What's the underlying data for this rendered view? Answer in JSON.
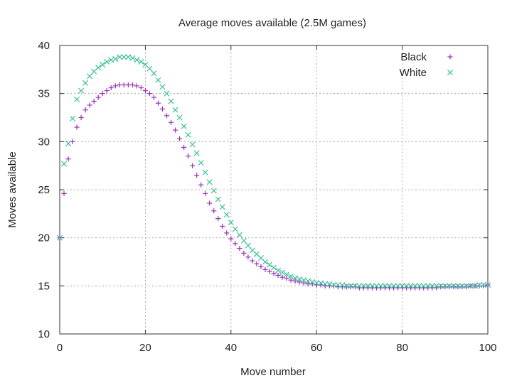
{
  "chart_data": {
    "type": "scatter",
    "title": "Average moves available (2.5M games)",
    "xlabel": "Move number",
    "ylabel": "Moves available",
    "xlim": [
      0,
      100
    ],
    "ylim": [
      10,
      40
    ],
    "xticks": [
      0,
      20,
      40,
      60,
      80,
      100
    ],
    "yticks": [
      10,
      15,
      20,
      25,
      30,
      35,
      40
    ],
    "grid": true,
    "legend_position": "top-right",
    "series": [
      {
        "name": "Black",
        "marker": "plus",
        "color": "#9b30b8",
        "x": [
          0,
          1,
          2,
          3,
          4,
          5,
          6,
          7,
          8,
          9,
          10,
          11,
          12,
          13,
          14,
          15,
          16,
          17,
          18,
          19,
          20,
          21,
          22,
          23,
          24,
          25,
          26,
          27,
          28,
          29,
          30,
          31,
          32,
          33,
          34,
          35,
          36,
          37,
          38,
          39,
          40,
          41,
          42,
          43,
          44,
          45,
          46,
          47,
          48,
          49,
          50,
          51,
          52,
          53,
          54,
          55,
          56,
          57,
          58,
          59,
          60,
          61,
          62,
          63,
          64,
          65,
          66,
          67,
          68,
          69,
          70,
          71,
          72,
          73,
          74,
          75,
          76,
          77,
          78,
          79,
          80,
          81,
          82,
          83,
          84,
          85,
          86,
          87,
          88,
          89,
          90,
          91,
          92,
          93,
          94,
          95,
          96,
          97,
          98,
          99,
          100
        ],
        "y": [
          20.0,
          24.6,
          28.2,
          30.0,
          31.5,
          32.5,
          33.3,
          33.8,
          34.2,
          34.6,
          35.0,
          35.3,
          35.6,
          35.8,
          35.9,
          35.9,
          35.9,
          35.9,
          35.8,
          35.6,
          35.3,
          35.0,
          34.6,
          34.0,
          33.4,
          32.7,
          32.0,
          31.2,
          30.3,
          29.4,
          28.5,
          27.5,
          26.5,
          25.5,
          24.6,
          23.6,
          22.8,
          22.0,
          21.2,
          20.5,
          19.9,
          19.4,
          18.9,
          18.4,
          18.0,
          17.6,
          17.3,
          17.0,
          16.7,
          16.5,
          16.3,
          16.1,
          15.9,
          15.8,
          15.6,
          15.5,
          15.4,
          15.3,
          15.2,
          15.2,
          15.1,
          15.1,
          15.0,
          15.0,
          15.0,
          14.9,
          14.9,
          14.9,
          14.9,
          14.9,
          14.8,
          14.8,
          14.8,
          14.8,
          14.8,
          14.8,
          14.8,
          14.8,
          14.8,
          14.8,
          14.8,
          14.8,
          14.8,
          14.8,
          14.8,
          14.8,
          14.8,
          14.8,
          14.8,
          14.9,
          14.9,
          14.9,
          14.9,
          14.9,
          14.9,
          14.9,
          15.0,
          15.0,
          15.0,
          15.0,
          15.1
        ]
      },
      {
        "name": "White",
        "marker": "cross",
        "color": "#3dbf9a",
        "x": [
          0,
          1,
          2,
          3,
          4,
          5,
          6,
          7,
          8,
          9,
          10,
          11,
          12,
          13,
          14,
          15,
          16,
          17,
          18,
          19,
          20,
          21,
          22,
          23,
          24,
          25,
          26,
          27,
          28,
          29,
          30,
          31,
          32,
          33,
          34,
          35,
          36,
          37,
          38,
          39,
          40,
          41,
          42,
          43,
          44,
          45,
          46,
          47,
          48,
          49,
          50,
          51,
          52,
          53,
          54,
          55,
          56,
          57,
          58,
          59,
          60,
          61,
          62,
          63,
          64,
          65,
          66,
          67,
          68,
          69,
          70,
          71,
          72,
          73,
          74,
          75,
          76,
          77,
          78,
          79,
          80,
          81,
          82,
          83,
          84,
          85,
          86,
          87,
          88,
          89,
          90,
          91,
          92,
          93,
          94,
          95,
          96,
          97,
          98,
          99,
          100
        ],
        "y": [
          20.0,
          27.7,
          29.8,
          32.4,
          34.4,
          35.3,
          36.1,
          36.8,
          37.3,
          37.7,
          38.0,
          38.3,
          38.5,
          38.6,
          38.8,
          38.8,
          38.8,
          38.7,
          38.5,
          38.3,
          38.0,
          37.6,
          37.1,
          36.4,
          35.7,
          35.0,
          34.2,
          33.3,
          32.5,
          31.6,
          30.7,
          29.7,
          28.8,
          27.8,
          26.8,
          25.8,
          24.9,
          24.0,
          23.2,
          22.4,
          21.6,
          20.9,
          20.3,
          19.7,
          19.2,
          18.7,
          18.3,
          17.9,
          17.5,
          17.2,
          16.9,
          16.6,
          16.4,
          16.2,
          16.0,
          15.8,
          15.7,
          15.6,
          15.5,
          15.4,
          15.3,
          15.3,
          15.2,
          15.2,
          15.1,
          15.1,
          15.1,
          15.0,
          15.0,
          15.0,
          15.0,
          15.0,
          15.0,
          15.0,
          15.0,
          15.0,
          15.0,
          15.0,
          15.0,
          15.0,
          15.0,
          15.0,
          15.0,
          15.0,
          15.0,
          15.0,
          15.0,
          15.0,
          15.0,
          15.0,
          15.0,
          15.0,
          15.0,
          15.0,
          15.0,
          15.0,
          15.0,
          15.0,
          15.1,
          15.1,
          15.1
        ]
      }
    ]
  }
}
